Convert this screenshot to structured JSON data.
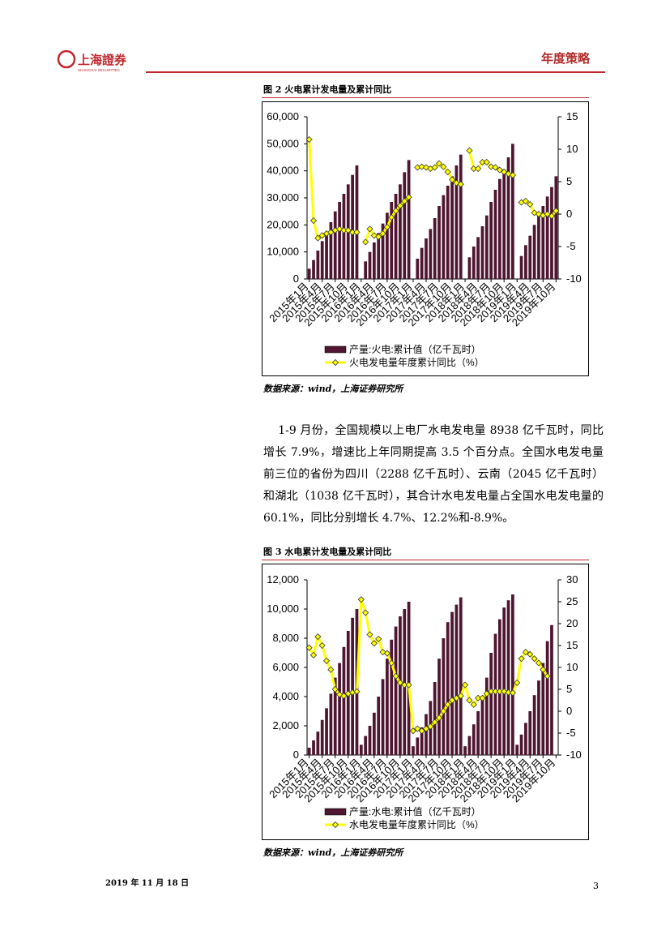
{
  "header": {
    "logo_text": "上海證券",
    "logo_subtext": "SHANGHAI SECURITIES",
    "section": "年度策略"
  },
  "figures": [
    {
      "caption": "图 2 火电累计发电量及累计同比",
      "source": "数据来源：wind，上海证券研究所",
      "chart_data": {
        "type": "bar",
        "categories": [
          "2015年1月",
          null,
          null,
          "2015年4月",
          null,
          null,
          "2015年7月",
          null,
          null,
          "2015年10月",
          null,
          null,
          "2016年1月",
          null,
          null,
          "2016年4月",
          null,
          null,
          "2016年7月",
          null,
          null,
          "2016年10月",
          null,
          null,
          "2017年1月",
          null,
          null,
          "2017年4月",
          null,
          null,
          "2017年7月",
          null,
          null,
          "2017年10月",
          null,
          null,
          "2018年1月",
          null,
          null,
          "2018年4月",
          null,
          null,
          "2018年7月",
          null,
          null,
          "2018年10月",
          null,
          null,
          "2019年1月",
          null,
          null,
          "2019年4月",
          null,
          null,
          "2019年7月",
          null,
          null,
          "2019年10月"
        ],
        "series": [
          {
            "name": "产量:火电:累计值（亿千瓦时）",
            "type": "bar",
            "color": "#4e1630",
            "values": [
              3800,
              7000,
              10500,
              14000,
              17500,
              21000,
              25000,
              28500,
              31500,
              35000,
              38500,
              42000,
              null,
              6500,
              10000,
              13500,
              17000,
              20500,
              24500,
              28500,
              31500,
              35000,
              39500,
              44000,
              null,
              7500,
              11500,
              15000,
              18500,
              22500,
              27000,
              31000,
              34500,
              38000,
              42000,
              46000,
              null,
              8000,
              12000,
              15500,
              19500,
              23500,
              28500,
              33000,
              37000,
              40500,
              45000,
              50000,
              null,
              8500,
              12500,
              16000,
              20000,
              23500,
              27000,
              30500,
              34000,
              38000
            ]
          },
          {
            "name": "火电发电量年度累计同比（%）",
            "type": "line",
            "axis": "y2",
            "color": "#ffff00",
            "values": [
              11.5,
              -1,
              -3.7,
              -3.3,
              -3,
              -2.8,
              -2.5,
              -2.3,
              -2.5,
              -2.5,
              -2.8,
              -2.8,
              null,
              -4.3,
              -2.3,
              -3.3,
              -3.5,
              -3,
              -2,
              -0.5,
              0.5,
              1.3,
              2,
              2.6,
              null,
              7.2,
              7.3,
              7.2,
              7,
              7.2,
              7.8,
              7.3,
              6.5,
              5.3,
              4.8,
              4.6,
              null,
              9.8,
              7,
              7,
              8,
              8,
              7.3,
              7.2,
              6.8,
              6.5,
              6.2,
              6,
              null,
              1.8,
              2,
              1.5,
              0.2,
              0,
              -0.2,
              0,
              -0.3,
              0.5
            ]
          }
        ],
        "ylim": [
          0,
          60000
        ],
        "yticks": [
          0,
          {
            "value": 10000,
            "label": "10,000"
          },
          {
            "value": 20000,
            "label": "20,000"
          },
          {
            "value": 30000,
            "label": "30,000"
          },
          {
            "value": 40000,
            "label": "40,000"
          },
          {
            "value": 50000,
            "label": "50,000"
          },
          {
            "value": 60000,
            "label": "60,000"
          }
        ],
        "y2lim": [
          -10,
          15
        ],
        "y2ticks": [
          -10,
          -5,
          0,
          5,
          10,
          15
        ],
        "legend": "bottom"
      }
    },
    {
      "caption": "图 3 水电累计发电量及累计同比",
      "source": "数据来源：wind，上海证券研究所",
      "chart_data": {
        "type": "bar",
        "categories": [
          "2015年1月",
          null,
          null,
          "2015年4月",
          null,
          null,
          "2015年7月",
          null,
          null,
          "2015年10月",
          null,
          null,
          "2016年1月",
          null,
          null,
          "2016年4月",
          null,
          null,
          "2016年7月",
          null,
          null,
          "2016年10月",
          null,
          null,
          "2017年1月",
          null,
          null,
          "2017年4月",
          null,
          null,
          "2017年7月",
          null,
          null,
          "2017年10月",
          null,
          null,
          "2018年1月",
          null,
          null,
          "2018年4月",
          null,
          null,
          "2018年7月",
          null,
          null,
          "2018年10月",
          null,
          null,
          "2019年1月",
          null,
          null,
          "2019年4月",
          null,
          null,
          "2019年7月",
          null,
          null,
          "2019年10月"
        ],
        "series": [
          {
            "name": "产量:水电:累计值（亿千瓦时）",
            "type": "bar",
            "color": "#4e1630",
            "values": [
              500,
              1000,
              1600,
              2400,
              3200,
              4200,
              5300,
              6300,
              7400,
              8500,
              9400,
              10000,
              700,
              1300,
              2000,
              2900,
              4000,
              5200,
              6600,
              7900,
              8800,
              9500,
              10000,
              10500,
              600,
              1200,
              1900,
              2800,
              3700,
              5000,
              6600,
              8000,
              9100,
              9800,
              10300,
              10800,
              600,
              1300,
              2100,
              3000,
              4000,
              5300,
              7000,
              8300,
              9300,
              10100,
              10600,
              11000,
              700,
              1400,
              2200,
              3000,
              4100,
              5100,
              6300,
              7800,
              8900,
              null
            ]
          },
          {
            "name": "水电发电量年度累计同比（%）",
            "type": "line",
            "axis": "y2",
            "color": "#ffff00",
            "values": [
              14.5,
              12.8,
              17,
              15,
              11.5,
              9.5,
              5,
              3.8,
              3.5,
              4,
              4.3,
              4.5,
              25.5,
              22.5,
              17.5,
              15.5,
              16.5,
              13.5,
              13.2,
              11,
              8,
              6.5,
              6,
              6,
              -4.5,
              -4,
              -4.5,
              -4,
              -3.5,
              -2.5,
              -1.5,
              0,
              1.5,
              2.5,
              3,
              3.5,
              6,
              2.5,
              1.5,
              3,
              3,
              4,
              4.5,
              4.5,
              4.5,
              4.5,
              4.3,
              4.2,
              6.5,
              12,
              13.5,
              13,
              12,
              11,
              9.5,
              8,
              null,
              null
            ]
          }
        ],
        "ylim": [
          0,
          12000
        ],
        "yticks": [
          0,
          {
            "value": 2000,
            "label": "2,000"
          },
          {
            "value": 4000,
            "label": "4,000"
          },
          {
            "value": 6000,
            "label": "6,000"
          },
          {
            "value": 8000,
            "label": "8,000"
          },
          {
            "value": 10000,
            "label": "10,000"
          },
          {
            "value": 12000,
            "label": "12,000"
          }
        ],
        "y2lim": [
          -10,
          30
        ],
        "y2ticks": [
          -10,
          -5,
          0,
          5,
          10,
          15,
          20,
          25,
          30
        ],
        "legend": "bottom"
      }
    }
  ],
  "paragraph": "1-9 月份，全国规模以上电厂水电发电量 8938 亿千瓦时，同比增长 7.9%，增速比上年同期提高 3.5 个百分点。全国水电发电量前三位的省份为四川（2288 亿千瓦时）、云南（2045 亿千瓦时）和湖北（1038 亿千瓦时），其合计水电发电量占全国水电发电量的 60.1%，同比分别增长 4.7%、12.2%和-8.9%。",
  "footer": {
    "date": "2019 年 11 月 18 日",
    "page": 3
  }
}
